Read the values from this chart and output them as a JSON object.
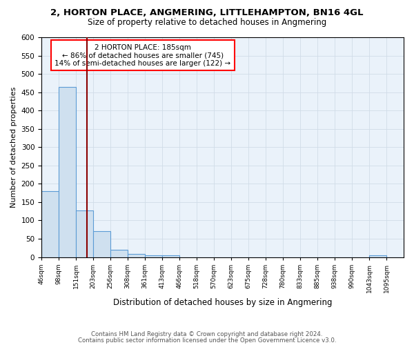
{
  "title": "2, HORTON PLACE, ANGMERING, LITTLEHAMPTON, BN16 4GL",
  "subtitle": "Size of property relative to detached houses in Angmering",
  "xlabel": "Distribution of detached houses by size in Angmering",
  "ylabel": "Number of detached properties",
  "footnote1": "Contains HM Land Registry data © Crown copyright and database right 2024.",
  "footnote2": "Contains public sector information licensed under the Open Government Licence v3.0.",
  "bin_labels": [
    "46sqm",
    "98sqm",
    "151sqm",
    "203sqm",
    "256sqm",
    "308sqm",
    "361sqm",
    "413sqm",
    "466sqm",
    "518sqm",
    "570sqm",
    "623sqm",
    "675sqm",
    "728sqm",
    "780sqm",
    "833sqm",
    "885sqm",
    "938sqm",
    "990sqm",
    "1043sqm",
    "1095sqm"
  ],
  "bar_values": [
    180,
    465,
    128,
    70,
    20,
    8,
    5,
    5,
    0,
    0,
    0,
    0,
    0,
    0,
    0,
    0,
    0,
    0,
    0,
    5,
    0
  ],
  "bar_color": "#cfe0ef",
  "bar_edge_color": "#5b9bd5",
  "grid_color": "#d0dce8",
  "background_color": "#eaf2fa",
  "annotation_text": "2 HORTON PLACE: 185sqm\n← 86% of detached houses are smaller (745)\n14% of semi-detached houses are larger (122) →",
  "ylim": [
    0,
    600
  ],
  "yticks": [
    0,
    50,
    100,
    150,
    200,
    250,
    300,
    350,
    400,
    450,
    500,
    550,
    600
  ],
  "vline_color": "#8b0000",
  "annotation_edge_color": "red",
  "footnote_color": "#555555"
}
